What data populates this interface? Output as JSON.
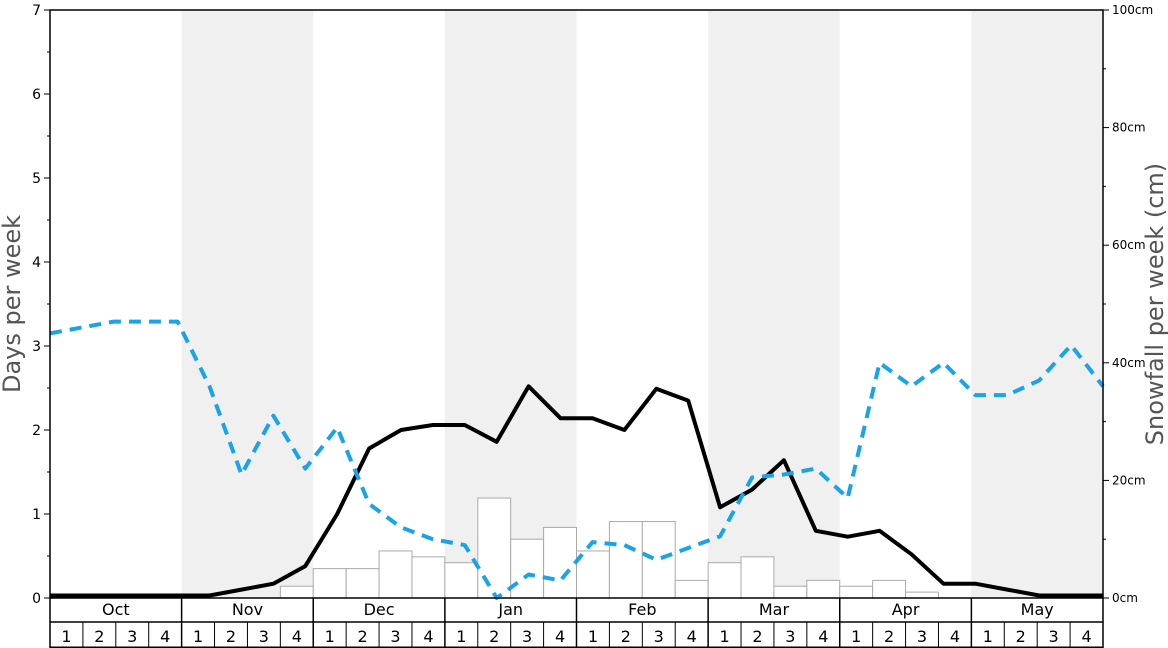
{
  "chart_data": {
    "type": "bar",
    "left_axis": {
      "title": "Days per week",
      "min": 0,
      "max": 7,
      "ticks": [
        "0",
        "1",
        "2",
        "3",
        "4",
        "5",
        "6",
        "7"
      ]
    },
    "right_axis": {
      "title": "Snowfall per week (cm)",
      "min": 0,
      "max": 100,
      "ticks": [
        {
          "value": 0,
          "label": "0cm"
        },
        {
          "value": 20,
          "label": "20cm"
        },
        {
          "value": 40,
          "label": "40cm"
        },
        {
          "value": 60,
          "label": "60cm"
        },
        {
          "value": 80,
          "label": "80cm"
        },
        {
          "value": 100,
          "label": "100cm"
        }
      ]
    },
    "months": [
      "Oct",
      "Nov",
      "Dec",
      "Jan",
      "Feb",
      "Mar",
      "Apr",
      "May"
    ],
    "week_labels": [
      "1",
      "2",
      "3",
      "4"
    ],
    "shaded_months": [
      "Nov",
      "Jan",
      "Mar",
      "May"
    ],
    "bars": {
      "axis": "left",
      "color": "#ffffff",
      "stroke": "#aaaaaa",
      "values": [
        0,
        0,
        0,
        0,
        0,
        0,
        0,
        0.14,
        0.35,
        0.35,
        0.56,
        0.49,
        0.42,
        1.19,
        0.7,
        0.84,
        0.56,
        0.91,
        0.91,
        0.21,
        0.42,
        0.49,
        0.14,
        0.21,
        0.14,
        0.21,
        0.07,
        0,
        0,
        0,
        0,
        0
      ]
    },
    "solid_line": {
      "axis": "left",
      "color": "#000000",
      "values": [
        0.03,
        0.03,
        0.03,
        0.03,
        0.03,
        0.03,
        0.1,
        0.17,
        0.38,
        1.0,
        1.78,
        2.0,
        2.06,
        2.06,
        1.86,
        2.52,
        2.14,
        2.14,
        2.0,
        2.49,
        2.35,
        1.08,
        1.29,
        1.64,
        0.8,
        0.73,
        0.8,
        0.52,
        0.17,
        0.17,
        0.1,
        0.03,
        0.03,
        0.03
      ]
    },
    "dashed_line": {
      "axis": "right",
      "color": "#1aa3e8",
      "values": [
        45,
        46,
        47,
        47,
        47,
        36,
        21,
        31,
        22,
        29,
        16,
        12,
        10,
        9,
        0,
        4,
        3,
        9.5,
        9,
        6.5,
        8.5,
        10.5,
        20.5,
        21,
        22,
        17,
        40,
        36,
        40,
        34.5,
        34.5,
        37,
        43,
        36
      ]
    }
  }
}
